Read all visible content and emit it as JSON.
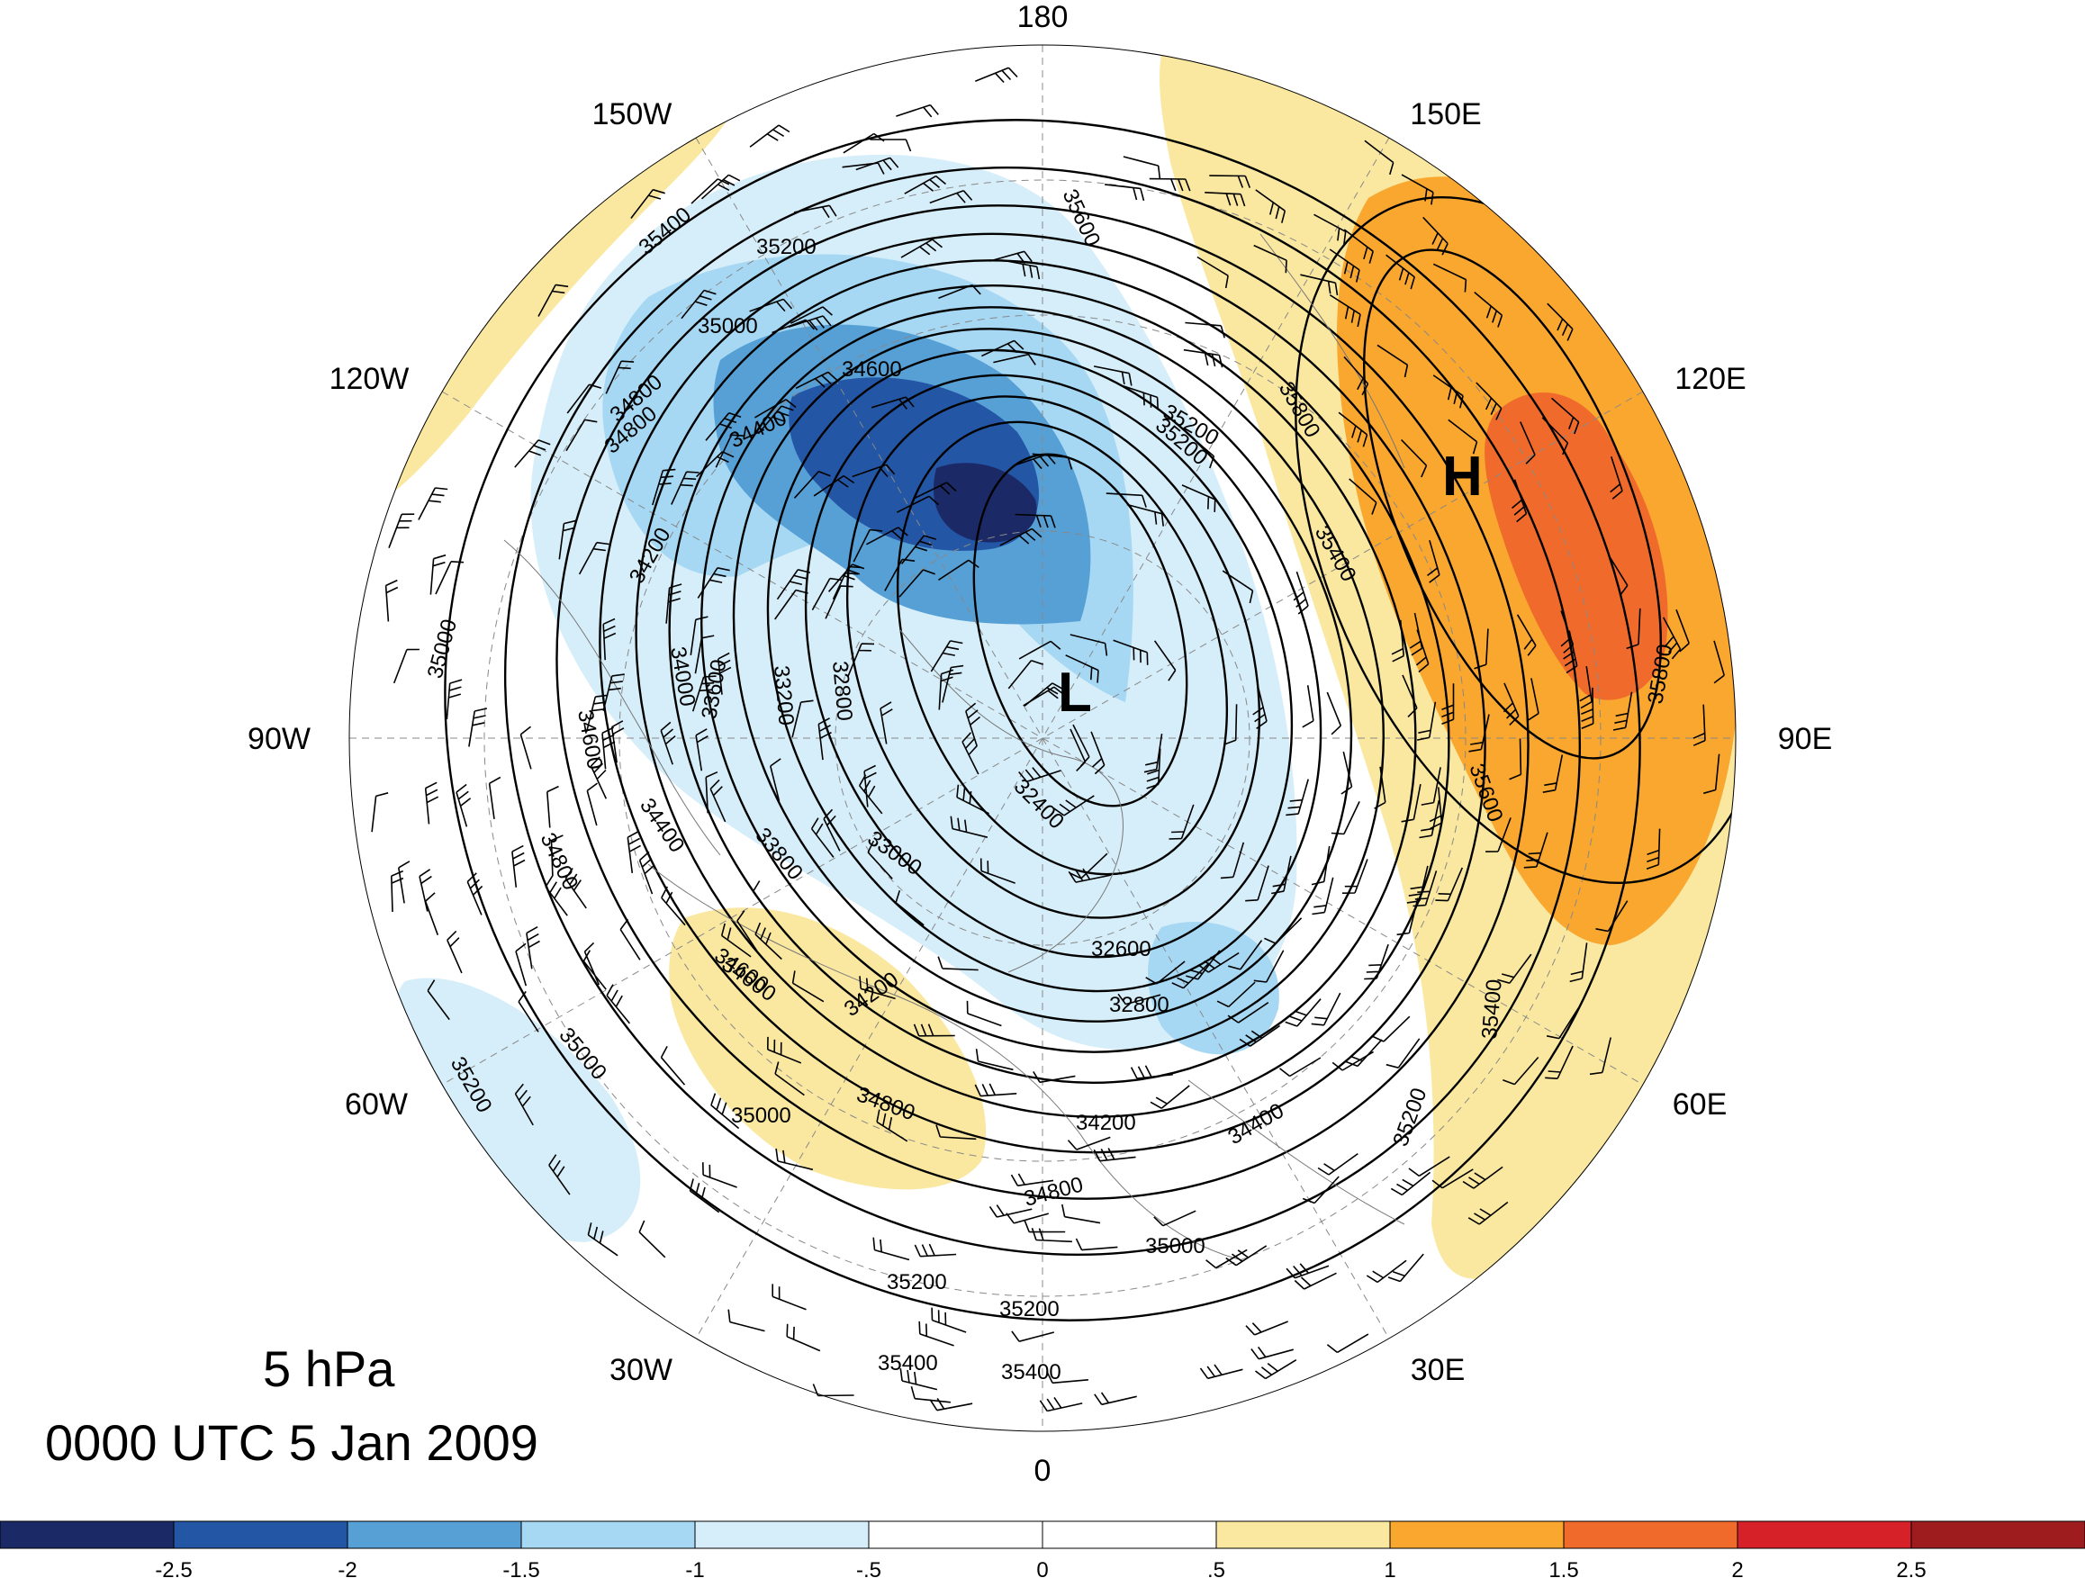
{
  "title": {
    "level": "5 hPa",
    "time": "0000 UTC 5 Jan 2009"
  },
  "longitude_labels": [
    "180",
    "150E",
    "120E",
    "90E",
    "60E",
    "30E",
    "0",
    "30W",
    "60W",
    "90W",
    "120W",
    "150W"
  ],
  "centers": {
    "low": "L",
    "high": "H"
  },
  "contour_labels": [
    "35400",
    "35200",
    "35000",
    "34600",
    "34400",
    "34800",
    "34200",
    "34000",
    "33600",
    "33200",
    "32800",
    "32400",
    "32600",
    "32800",
    "33000",
    "33800",
    "34400",
    "34200",
    "34600",
    "34800",
    "35000",
    "35200",
    "35600",
    "35800",
    "35200",
    "35400",
    "35600",
    "35800",
    "35400",
    "35200",
    "34400",
    "34200",
    "34800",
    "35000",
    "35200",
    "35200",
    "35400",
    "35400",
    "35000",
    "34800",
    "35200",
    "34800",
    "34600",
    "35000",
    "34600"
  ],
  "colorbar": {
    "labels": [
      "-2.5",
      "-2",
      "-1.5",
      "-1",
      "-.5",
      "0",
      ".5",
      "1",
      "1.5",
      "2",
      "2.5"
    ],
    "colors": [
      "#1b2a66",
      "#2456a6",
      "#56a0d6",
      "#a6d8f4",
      "#d6eef9",
      "#ffffff",
      "#ffffff",
      "#fae8a0",
      "#f9a72f",
      "#f06b2b",
      "#d62128",
      "#9e1b1e"
    ]
  },
  "colors": {
    "anomaly_neg_1": "#d6eef9",
    "anomaly_neg_2": "#a6d8f4",
    "anomaly_neg_3": "#56a0d6",
    "anomaly_neg_4": "#2456a6",
    "anomaly_neg_5": "#1b2a66",
    "anomaly_pos_1": "#fae8a0",
    "anomaly_pos_2": "#f9a72f",
    "anomaly_pos_3": "#f06b2b"
  }
}
